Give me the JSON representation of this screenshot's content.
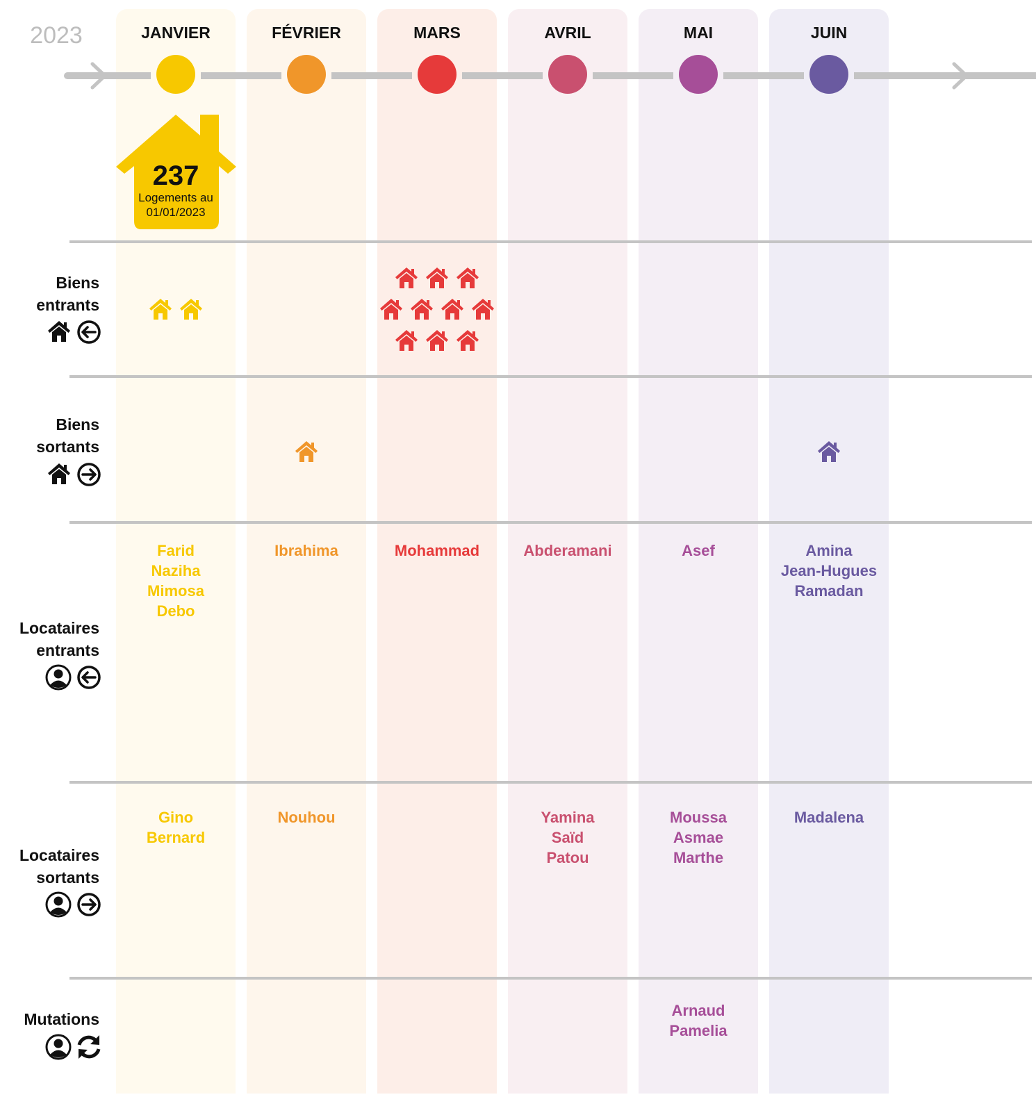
{
  "year": "2023",
  "months": [
    {
      "name": "JANVIER",
      "color": "#f7c800",
      "background": "#fffaee"
    },
    {
      "name": "FÉVRIER",
      "color": "#f0962a",
      "background": "#fef6ec"
    },
    {
      "name": "MARS",
      "color": "#e63a3a",
      "background": "#fdeee8"
    },
    {
      "name": "AVRIL",
      "color": "#c9506f",
      "background": "#f9eff2"
    },
    {
      "name": "MAI",
      "color": "#a64e98",
      "background": "#f4eef5"
    },
    {
      "name": "JUIN",
      "color": "#6a5aa0",
      "background": "#efedf6"
    }
  ],
  "stock": {
    "value": "237",
    "label": "Logements au",
    "date": "01/01/2023"
  },
  "rows": [
    {
      "label_lines": [
        "Biens",
        "entrants"
      ],
      "counts": [
        2,
        0,
        10,
        0,
        0,
        0
      ]
    },
    {
      "label_lines": [
        "Biens",
        "sortants"
      ],
      "counts": [
        0,
        1,
        0,
        0,
        0,
        1
      ]
    },
    {
      "label_lines": [
        "Locataires",
        "entrants"
      ],
      "names": [
        [
          "Farid",
          "Naziha",
          "Mimosa",
          "Debo"
        ],
        [
          "Ibrahima"
        ],
        [
          "Mohammad"
        ],
        [
          "Abderamani"
        ],
        [
          "Asef"
        ],
        [
          "Amina",
          "Jean-Hugues",
          "Ramadan"
        ]
      ]
    },
    {
      "label_lines": [
        "Locataires",
        "sortants"
      ],
      "names": [
        [
          "Gino",
          "Bernard"
        ],
        [
          "Nouhou"
        ],
        [],
        [
          "Yamina",
          "Saïd",
          "Patou"
        ],
        [
          "Moussa",
          "Asmae",
          "Marthe"
        ],
        [
          "Madalena"
        ]
      ]
    },
    {
      "label_lines": [
        "Mutations"
      ],
      "names": [
        [],
        [],
        [],
        [],
        [
          "Arnaud",
          "Pamelia"
        ],
        []
      ]
    }
  ]
}
